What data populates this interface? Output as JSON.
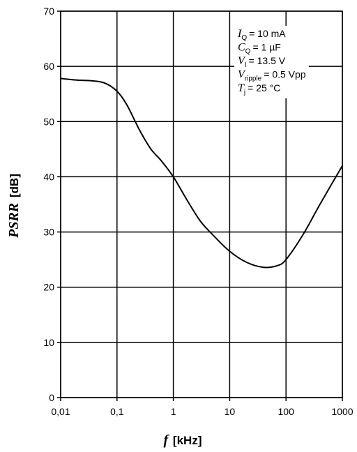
{
  "chart_data": {
    "type": "line",
    "x_scale": "log",
    "xlim": [
      0.01,
      1000
    ],
    "ylim": [
      0,
      70
    ],
    "grid": true,
    "xlabel_symbol": "f",
    "xlabel_unit": "[kHz]",
    "ylabel_symbol": "PSRR",
    "ylabel_unit": "[dB]",
    "x_tick_labels": [
      "0,01",
      "0,1",
      "1",
      "10",
      "100",
      "1000"
    ],
    "y_tick_labels": [
      "0",
      "10",
      "20",
      "30",
      "40",
      "50",
      "60",
      "70"
    ],
    "series": [
      {
        "color": "#000000",
        "x": [
          0.01,
          0.02,
          0.035,
          0.06,
          0.1,
          0.15,
          0.25,
          0.4,
          0.6,
          1,
          1.7,
          3,
          5,
          10,
          20,
          40,
          70,
          100,
          200,
          400,
          1000
        ],
        "y": [
          57.8,
          57.5,
          57.4,
          57.0,
          55.5,
          53.0,
          48.5,
          45.0,
          43.0,
          40.0,
          36.0,
          32.0,
          29.5,
          26.5,
          24.5,
          23.6,
          23.9,
          25.0,
          29.5,
          35.0,
          42.0
        ]
      }
    ],
    "annotations": [
      {
        "sym": "I",
        "sub": "Q",
        "text": "= 10 mA"
      },
      {
        "sym": "C",
        "sub": "Q",
        "text": "= 1 µF"
      },
      {
        "sym": "V",
        "sub": "I",
        "text": "= 13.5 V"
      },
      {
        "sym": "V",
        "sub": "ripple",
        "text": "= 0.5 Vpp"
      },
      {
        "sym": "T",
        "sub": "j",
        "text": "= 25 °C"
      }
    ]
  }
}
